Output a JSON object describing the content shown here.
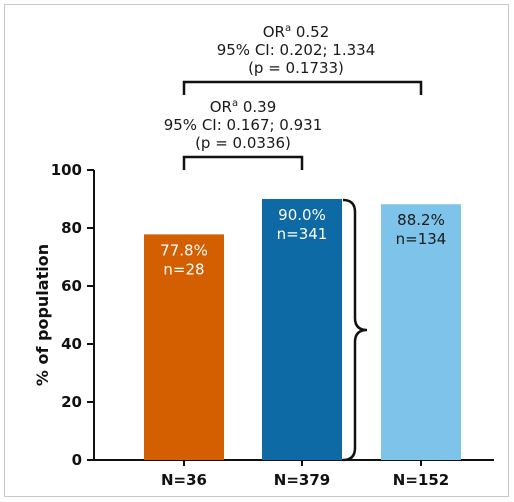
{
  "chart_data": {
    "type": "bar",
    "ylabel": "% of population",
    "ylim": [
      0,
      100
    ],
    "yticks": [
      "0",
      "20",
      "40",
      "60",
      "80",
      "100"
    ],
    "categories": [
      "N=36",
      "N=379",
      "N=152"
    ],
    "values": [
      77.8,
      90.0,
      88.2
    ],
    "colors": [
      "#d45f00",
      "#0d6aa5",
      "#7ec4ea"
    ],
    "label_colors": [
      "#ffffff",
      "#ffffff",
      "#1a1a1a"
    ],
    "bar_labels": [
      {
        "pct": "77.8%",
        "n": "n=28"
      },
      {
        "pct": "90.0%",
        "n": "n=341"
      },
      {
        "pct": "88.2%",
        "n": "n=134"
      }
    ],
    "comparisons": [
      {
        "or_prefix": "OR",
        "or_sup": "a",
        "or_value": " 0.39",
        "ci": "95% CI: 0.167; 0.931",
        "p": "(p = 0.0336)"
      },
      {
        "or_prefix": "OR",
        "or_sup": "a",
        "or_value": " 0.52",
        "ci": "95% CI: 0.202; 1.334",
        "p": "(p = 0.1733)"
      }
    ]
  }
}
